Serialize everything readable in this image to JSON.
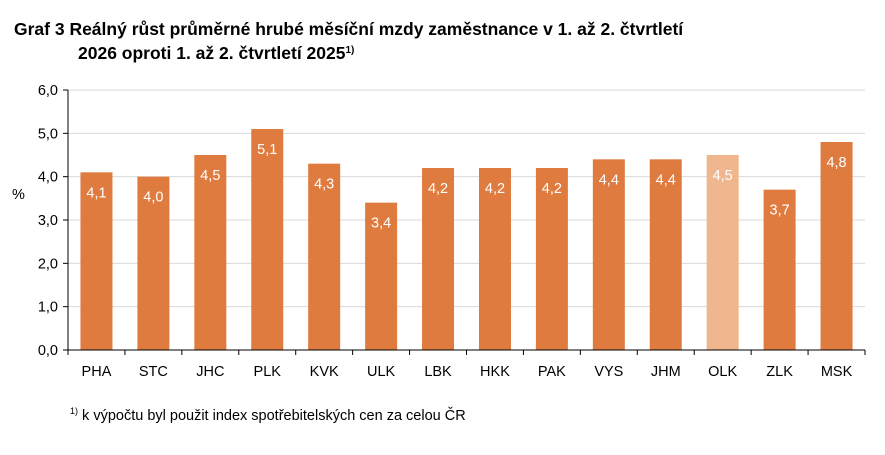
{
  "title": {
    "line1": "Graf 3 Reálný růst průměrné hrubé měsíční mzdy zaměstnance v 1. až 2. čtvrtletí",
    "line2": "2026 oproti 1. až 2. čtvrtletí 2025",
    "note_marker": "1)"
  },
  "footnote": {
    "marker": "1)",
    "text": "k výpočtu byl použit index spotřebitelských cen za celou ČR"
  },
  "chart_data": {
    "type": "bar",
    "ylabel": "%",
    "ylim": [
      0,
      6
    ],
    "yticks": [
      "0,0",
      "1,0",
      "2,0",
      "3,0",
      "4,0",
      "5,0",
      "6,0"
    ],
    "grid": true,
    "categories": [
      "PHA",
      "STC",
      "JHC",
      "PLK",
      "KVK",
      "ULK",
      "LBK",
      "HKK",
      "PAK",
      "VYS",
      "JHM",
      "OLK",
      "ZLK",
      "MSK"
    ],
    "values": [
      4.1,
      4.0,
      4.5,
      5.1,
      4.3,
      3.4,
      4.2,
      4.2,
      4.2,
      4.4,
      4.4,
      4.5,
      3.7,
      4.8
    ],
    "data_labels": [
      "4,1",
      "4,0",
      "4,5",
      "5,1",
      "4,3",
      "3,4",
      "4,2",
      "4,2",
      "4,2",
      "4,4",
      "4,4",
      "4,5",
      "3,7",
      "4,8"
    ],
    "bar_color": "#E07B3F",
    "highlight_category": "OLK",
    "highlight_color": "#F0B78E"
  }
}
